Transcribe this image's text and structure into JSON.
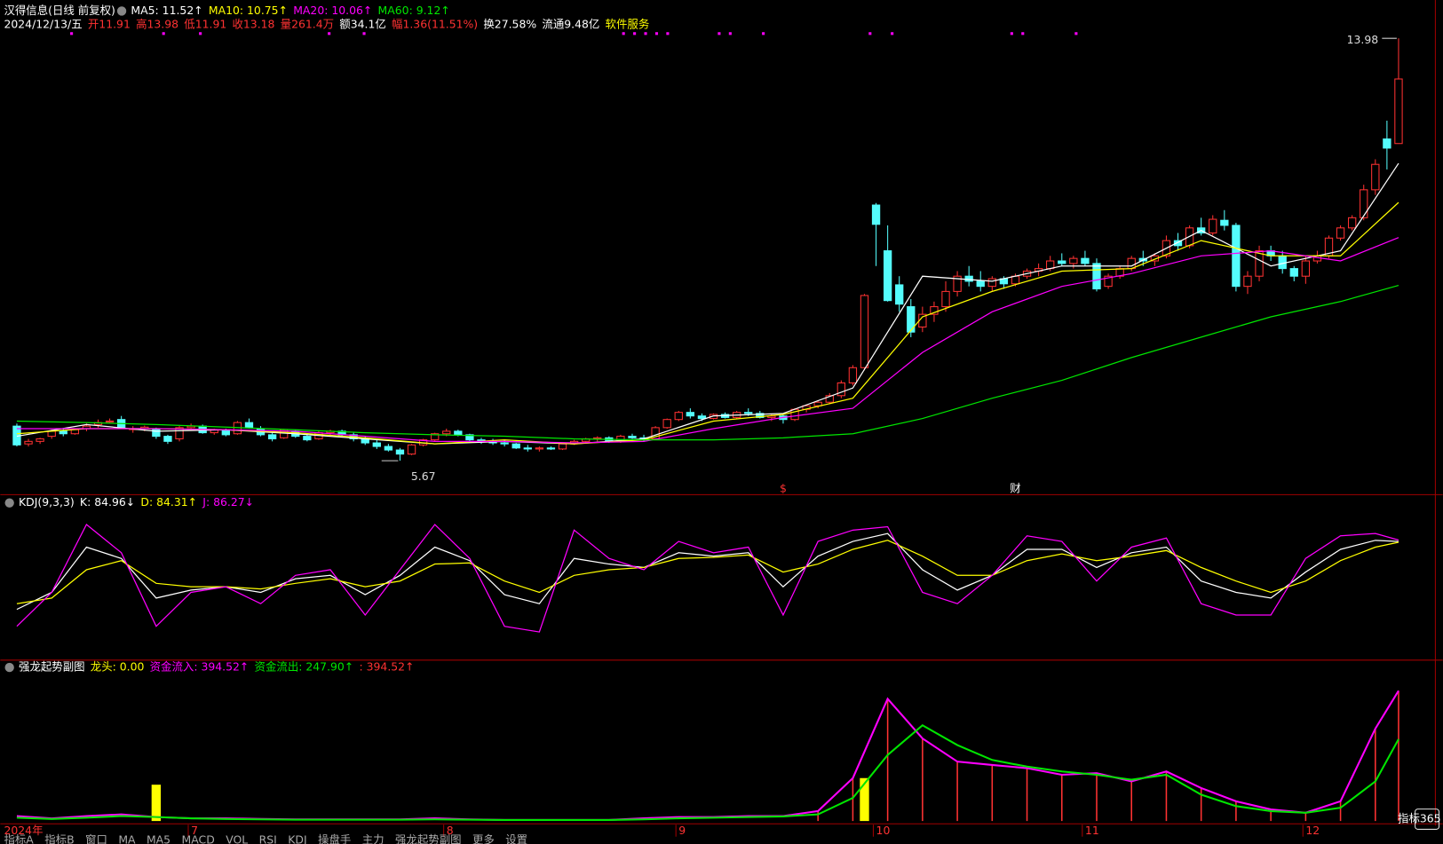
{
  "header": {
    "row1": [
      {
        "text": "汉得信息(日线 前复权)",
        "color": "#ffffff"
      },
      {
        "text": "MA5: 11.52↑",
        "color": "#ffffff"
      },
      {
        "text": "MA10: 10.75↑",
        "color": "#ffff00"
      },
      {
        "text": "MA20: 10.06↑",
        "color": "#ff00ff"
      },
      {
        "text": "MA60: 9.12↑",
        "color": "#00e600"
      }
    ],
    "row2": [
      {
        "text": "2024/12/13/五",
        "color": "#ffffff"
      },
      {
        "text": "开11.91",
        "color": "#ff3232"
      },
      {
        "text": "高13.98",
        "color": "#ff3232"
      },
      {
        "text": "低11.91",
        "color": "#ff3232"
      },
      {
        "text": "收13.18",
        "color": "#ff3232"
      },
      {
        "text": "量261.4万",
        "color": "#ff3232"
      },
      {
        "text": "额34.1亿",
        "color": "#ffffff"
      },
      {
        "text": "幅1.36(11.51%)",
        "color": "#ff3232"
      },
      {
        "text": "换27.58%",
        "color": "#ffffff"
      },
      {
        "text": "流通9.48亿",
        "color": "#ffffff"
      },
      {
        "text": "软件服务",
        "color": "#ffff00"
      }
    ]
  },
  "price_panel": {
    "type": "candlestick",
    "up_color": "#ff3232",
    "down_color": "#54fcfc",
    "ylim": [
      5.4,
      14.3
    ],
    "candles": [
      [
        6.35,
        6.4,
        5.95,
        5.98
      ],
      [
        6.0,
        6.1,
        5.95,
        6.05
      ],
      [
        6.05,
        6.12,
        6.0,
        6.1
      ],
      [
        6.15,
        6.28,
        6.1,
        6.25
      ],
      [
        6.25,
        6.3,
        6.15,
        6.2
      ],
      [
        6.2,
        6.3,
        6.18,
        6.28
      ],
      [
        6.3,
        6.4,
        6.25,
        6.35
      ],
      [
        6.38,
        6.48,
        6.32,
        6.42
      ],
      [
        6.45,
        6.5,
        6.4,
        6.45
      ],
      [
        6.48,
        6.55,
        6.3,
        6.32
      ],
      [
        6.3,
        6.35,
        6.22,
        6.3
      ],
      [
        6.3,
        6.36,
        6.25,
        6.33
      ],
      [
        6.3,
        6.32,
        6.1,
        6.15
      ],
      [
        6.15,
        6.18,
        6.0,
        6.05
      ],
      [
        6.1,
        6.35,
        6.05,
        6.32
      ],
      [
        6.32,
        6.4,
        6.28,
        6.35
      ],
      [
        6.35,
        6.38,
        6.2,
        6.22
      ],
      [
        6.22,
        6.3,
        6.18,
        6.28
      ],
      [
        6.28,
        6.3,
        6.15,
        6.18
      ],
      [
        6.2,
        6.45,
        6.18,
        6.42
      ],
      [
        6.42,
        6.5,
        6.3,
        6.32
      ],
      [
        6.3,
        6.35,
        6.15,
        6.18
      ],
      [
        6.18,
        6.22,
        6.05,
        6.1
      ],
      [
        6.12,
        6.3,
        6.1,
        6.28
      ],
      [
        6.25,
        6.28,
        6.12,
        6.15
      ],
      [
        6.15,
        6.2,
        6.05,
        6.08
      ],
      [
        6.1,
        6.25,
        6.08,
        6.22
      ],
      [
        6.22,
        6.28,
        6.18,
        6.25
      ],
      [
        6.25,
        6.28,
        6.15,
        6.18
      ],
      [
        6.18,
        6.22,
        6.05,
        6.1
      ],
      [
        6.1,
        6.15,
        5.98,
        6.02
      ],
      [
        6.02,
        6.08,
        5.9,
        5.95
      ],
      [
        5.95,
        6.0,
        5.85,
        5.88
      ],
      [
        5.88,
        5.92,
        5.67,
        5.8
      ],
      [
        5.8,
        6.0,
        5.78,
        5.98
      ],
      [
        5.98,
        6.1,
        5.95,
        6.08
      ],
      [
        6.08,
        6.22,
        6.05,
        6.2
      ],
      [
        6.2,
        6.3,
        6.15,
        6.25
      ],
      [
        6.25,
        6.28,
        6.15,
        6.18
      ],
      [
        6.18,
        6.2,
        6.05,
        6.08
      ],
      [
        6.08,
        6.12,
        6.0,
        6.05
      ],
      [
        6.05,
        6.1,
        5.98,
        6.02
      ],
      [
        6.02,
        6.08,
        5.95,
        6.0
      ],
      [
        6.0,
        6.02,
        5.9,
        5.92
      ],
      [
        5.92,
        5.98,
        5.85,
        5.9
      ],
      [
        5.9,
        5.95,
        5.85,
        5.92
      ],
      [
        5.92,
        5.95,
        5.88,
        5.9
      ],
      [
        5.9,
        6.02,
        5.88,
        6.0
      ],
      [
        6.0,
        6.08,
        5.98,
        6.05
      ],
      [
        6.05,
        6.12,
        6.02,
        6.1
      ],
      [
        6.1,
        6.15,
        6.05,
        6.12
      ],
      [
        6.12,
        6.15,
        6.02,
        6.05
      ],
      [
        6.05,
        6.18,
        6.02,
        6.15
      ],
      [
        6.15,
        6.2,
        6.1,
        6.12
      ],
      [
        6.12,
        6.18,
        6.05,
        6.08
      ],
      [
        6.1,
        6.35,
        6.08,
        6.32
      ],
      [
        6.32,
        6.5,
        6.3,
        6.48
      ],
      [
        6.48,
        6.65,
        6.45,
        6.62
      ],
      [
        6.62,
        6.7,
        6.5,
        6.55
      ],
      [
        6.55,
        6.6,
        6.45,
        6.5
      ],
      [
        6.5,
        6.6,
        6.48,
        6.58
      ],
      [
        6.58,
        6.62,
        6.5,
        6.52
      ],
      [
        6.52,
        6.65,
        6.5,
        6.62
      ],
      [
        6.62,
        6.7,
        6.55,
        6.6
      ],
      [
        6.6,
        6.65,
        6.5,
        6.52
      ],
      [
        6.52,
        6.58,
        6.45,
        6.55
      ],
      [
        6.55,
        6.6,
        6.4,
        6.48
      ],
      [
        6.48,
        6.7,
        6.45,
        6.68
      ],
      [
        6.68,
        6.78,
        6.62,
        6.75
      ],
      [
        6.75,
        6.85,
        6.7,
        6.82
      ],
      [
        6.82,
        7.0,
        6.78,
        6.95
      ],
      [
        6.95,
        7.25,
        6.9,
        7.2
      ],
      [
        7.2,
        7.55,
        7.15,
        7.5
      ],
      [
        7.5,
        8.95,
        7.45,
        8.92
      ],
      [
        10.7,
        10.74,
        9.5,
        10.32
      ],
      [
        9.8,
        10.3,
        8.8,
        8.82
      ],
      [
        9.13,
        9.3,
        8.6,
        8.75
      ],
      [
        8.7,
        8.85,
        8.1,
        8.2
      ],
      [
        8.3,
        8.7,
        8.2,
        8.55
      ],
      [
        8.55,
        8.8,
        8.4,
        8.7
      ],
      [
        8.7,
        9.2,
        8.6,
        9.0
      ],
      [
        9.0,
        9.4,
        8.9,
        9.3
      ],
      [
        9.3,
        9.5,
        9.1,
        9.2
      ],
      [
        9.2,
        9.4,
        9.0,
        9.1
      ],
      [
        9.1,
        9.3,
        9.0,
        9.25
      ],
      [
        9.25,
        9.3,
        9.05,
        9.15
      ],
      [
        9.15,
        9.35,
        9.1,
        9.3
      ],
      [
        9.3,
        9.45,
        9.25,
        9.4
      ],
      [
        9.4,
        9.55,
        9.3,
        9.45
      ],
      [
        9.45,
        9.7,
        9.4,
        9.6
      ],
      [
        9.6,
        9.75,
        9.5,
        9.55
      ],
      [
        9.55,
        9.7,
        9.45,
        9.65
      ],
      [
        9.65,
        9.8,
        9.5,
        9.55
      ],
      [
        9.55,
        9.65,
        9.0,
        9.05
      ],
      [
        9.1,
        9.35,
        9.05,
        9.3
      ],
      [
        9.3,
        9.5,
        9.25,
        9.45
      ],
      [
        9.45,
        9.7,
        9.4,
        9.65
      ],
      [
        9.65,
        9.8,
        9.5,
        9.6
      ],
      [
        9.6,
        9.75,
        9.5,
        9.7
      ],
      [
        9.7,
        10.1,
        9.65,
        10.0
      ],
      [
        10.0,
        10.15,
        9.8,
        9.9
      ],
      [
        9.9,
        10.3,
        9.85,
        10.25
      ],
      [
        10.25,
        10.45,
        10.1,
        10.15
      ],
      [
        10.15,
        10.5,
        10.1,
        10.42
      ],
      [
        10.4,
        10.6,
        10.2,
        10.3
      ],
      [
        10.3,
        10.35,
        9.0,
        9.1
      ],
      [
        9.1,
        9.4,
        8.95,
        9.3
      ],
      [
        9.3,
        9.9,
        9.2,
        9.8
      ],
      [
        9.8,
        9.9,
        9.6,
        9.7
      ],
      [
        9.7,
        9.8,
        9.35,
        9.45
      ],
      [
        9.45,
        9.5,
        9.2,
        9.3
      ],
      [
        9.3,
        9.7,
        9.15,
        9.6
      ],
      [
        9.6,
        9.8,
        9.55,
        9.7
      ],
      [
        9.7,
        10.1,
        9.65,
        10.05
      ],
      [
        10.05,
        10.3,
        10.0,
        10.25
      ],
      [
        10.25,
        10.5,
        10.2,
        10.45
      ],
      [
        10.45,
        11.1,
        10.4,
        11.0
      ],
      [
        11.0,
        11.6,
        10.9,
        11.5
      ],
      [
        12.0,
        12.36,
        11.4,
        11.82
      ],
      [
        11.91,
        13.98,
        11.91,
        13.18
      ]
    ],
    "ma": {
      "x": [
        0,
        6,
        12,
        18,
        24,
        30,
        36,
        42,
        48,
        54,
        60,
        66,
        72,
        78,
        84,
        90,
        96,
        102,
        108,
        114,
        119
      ],
      "series": [
        {
          "color": "#ffffff",
          "values": [
            6.15,
            6.38,
            6.25,
            6.28,
            6.2,
            6.1,
            6.0,
            6.05,
            6.0,
            6.1,
            6.55,
            6.6,
            7.1,
            9.3,
            9.2,
            9.5,
            9.5,
            10.2,
            9.5,
            9.8,
            11.52
          ]
        },
        {
          "color": "#ffff00",
          "values": [
            6.2,
            6.3,
            6.3,
            6.28,
            6.22,
            6.12,
            6.0,
            6.08,
            6.0,
            6.08,
            6.45,
            6.58,
            6.9,
            8.5,
            9.0,
            9.4,
            9.45,
            10.0,
            9.7,
            9.7,
            10.75
          ]
        },
        {
          "color": "#ff00ff",
          "values": [
            6.3,
            6.3,
            6.3,
            6.28,
            6.25,
            6.15,
            6.05,
            6.05,
            6.02,
            6.05,
            6.3,
            6.52,
            6.7,
            7.8,
            8.6,
            9.1,
            9.35,
            9.7,
            9.8,
            9.6,
            10.06
          ]
        },
        {
          "color": "#00e600",
          "values": [
            6.45,
            6.42,
            6.38,
            6.33,
            6.28,
            6.22,
            6.18,
            6.15,
            6.1,
            6.08,
            6.08,
            6.12,
            6.2,
            6.5,
            6.9,
            7.25,
            7.7,
            8.1,
            8.5,
            8.8,
            9.12
          ]
        }
      ]
    },
    "annotations": [
      {
        "value": 13.98,
        "index": 119
      },
      {
        "value": 5.67,
        "index": 33
      }
    ],
    "markers": [
      {
        "text": "$",
        "index": 66,
        "color": "#ff3232"
      },
      {
        "text": "财",
        "index": 86,
        "color": "#ffffff"
      }
    ]
  },
  "x_axis": {
    "labels": [
      {
        "text": "2024年",
        "index": 0
      },
      {
        "text": "7",
        "index": 15
      },
      {
        "text": "8",
        "index": 37
      },
      {
        "text": "9",
        "index": 57
      },
      {
        "text": "10",
        "index": 74
      },
      {
        "text": "11",
        "index": 92
      },
      {
        "text": "12",
        "index": 111
      }
    ]
  },
  "kdj_panel": {
    "header": [
      {
        "text": "KDJ(9,3,3)",
        "color": "#ffffff"
      },
      {
        "text": "K: 84.96↓",
        "color": "#ffffff"
      },
      {
        "text": "D: 84.31↑",
        "color": "#ffff00"
      },
      {
        "text": "J: 86.27↓",
        "color": "#ff00ff"
      }
    ],
    "ylim": [
      -15,
      115
    ],
    "x": [
      0,
      3,
      6,
      9,
      12,
      15,
      18,
      21,
      24,
      27,
      30,
      33,
      36,
      39,
      42,
      45,
      48,
      51,
      54,
      57,
      60,
      63,
      66,
      69,
      72,
      75,
      78,
      81,
      84,
      87,
      90,
      93,
      96,
      99,
      102,
      105,
      108,
      111,
      114,
      117,
      119
    ],
    "series": [
      {
        "color": "#ffffff",
        "values": [
          25,
          40,
          80,
          70,
          35,
          42,
          45,
          40,
          52,
          55,
          38,
          55,
          80,
          68,
          38,
          30,
          70,
          65,
          62,
          75,
          72,
          75,
          45,
          72,
          85,
          92,
          60,
          42,
          55,
          78,
          78,
          62,
          75,
          80,
          50,
          40,
          35,
          58,
          78,
          86,
          84.96
        ]
      },
      {
        "color": "#ffff00",
        "values": [
          30,
          35,
          60,
          68,
          48,
          45,
          45,
          43,
          48,
          52,
          45,
          50,
          65,
          66,
          50,
          40,
          55,
          60,
          62,
          70,
          71,
          73,
          58,
          65,
          78,
          86,
          72,
          55,
          55,
          68,
          74,
          68,
          72,
          77,
          62,
          50,
          40,
          50,
          68,
          80,
          84.31
        ]
      },
      {
        "color": "#ff00ff",
        "values": [
          10,
          40,
          100,
          75,
          10,
          40,
          45,
          30,
          55,
          60,
          20,
          60,
          100,
          70,
          10,
          5,
          95,
          70,
          60,
          85,
          75,
          80,
          20,
          85,
          95,
          98,
          40,
          30,
          55,
          90,
          85,
          50,
          80,
          88,
          30,
          20,
          20,
          70,
          90,
          92,
          86.27
        ]
      }
    ]
  },
  "flow_panel": {
    "header": [
      {
        "text": "强龙起势副图",
        "color": "#ffffff"
      },
      {
        "text": "龙头: 0.00",
        "color": "#ffff00"
      },
      {
        "text": "资金流入: 394.52↑",
        "color": "#ff00ff"
      },
      {
        "text": "资金流出: 247.90↑",
        "color": "#00e600"
      },
      {
        "text": ": 394.52↑",
        "color": "#ff3232"
      }
    ],
    "ylim": [
      0,
      440
    ],
    "x": [
      0,
      3,
      6,
      9,
      12,
      15,
      18,
      21,
      24,
      27,
      30,
      33,
      36,
      39,
      42,
      45,
      48,
      51,
      54,
      57,
      60,
      63,
      66,
      69,
      72,
      75,
      78,
      81,
      84,
      87,
      90,
      93,
      96,
      99,
      102,
      105,
      108,
      111,
      114,
      117,
      119
    ],
    "bars": {
      "color": "#ff3232",
      "values": [
        null,
        null,
        null,
        null,
        null,
        null,
        null,
        null,
        null,
        null,
        null,
        null,
        null,
        null,
        null,
        null,
        null,
        null,
        null,
        null,
        null,
        null,
        null,
        30,
        130,
        370,
        250,
        180,
        170,
        160,
        140,
        145,
        120,
        150,
        100,
        60,
        35,
        25,
        60,
        280,
        394.52
      ]
    },
    "series": [
      {
        "color": "#ff00ff",
        "values": [
          15,
          8,
          15,
          20,
          12,
          8,
          8,
          6,
          5,
          5,
          5,
          5,
          8,
          5,
          3,
          3,
          3,
          3,
          8,
          12,
          12,
          15,
          15,
          30,
          130,
          370,
          250,
          180,
          170,
          160,
          140,
          145,
          120,
          150,
          100,
          60,
          35,
          25,
          60,
          280,
          394.52
        ]
      },
      {
        "color": "#00e600",
        "values": [
          10,
          6,
          10,
          15,
          12,
          8,
          6,
          5,
          4,
          4,
          4,
          4,
          5,
          4,
          3,
          3,
          3,
          3,
          5,
          8,
          10,
          12,
          14,
          20,
          70,
          200,
          290,
          230,
          185,
          165,
          150,
          140,
          125,
          140,
          80,
          45,
          30,
          25,
          40,
          120,
          247.9
        ]
      }
    ],
    "dragon": {
      "color": "#ffff00",
      "x": [
        12,
        73
      ],
      "values": [
        110,
        130
      ]
    }
  },
  "toolbar": [
    "指标A",
    "指标B",
    "窗口",
    "MA",
    "MA5",
    "MACD",
    "VOL",
    "RSI",
    "KDJ",
    "操盘手",
    "主力",
    "强龙起势副图",
    "更多",
    "设置"
  ],
  "logo": "指标365"
}
